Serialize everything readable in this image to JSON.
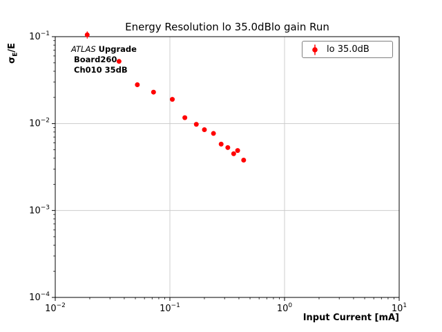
{
  "title": "Energy Resolution lo 35.0dBlo gain Run",
  "axes": {
    "ylabel_sigma": "σ",
    "ylabel_sub": "E",
    "ylabel_rest": "/E",
    "xlabel": "Input Current [mA]"
  },
  "annotation": {
    "line1_italic": "ATLAS",
    "line1_bold": " Upgrade",
    "line2": "Board260",
    "line3": "Ch010 35dB"
  },
  "legend": {
    "label": "lo 35.0dB"
  },
  "colors": {
    "series": "#ff0000",
    "grid": "#cccccc",
    "spine": "#000000"
  },
  "chart_data": {
    "type": "scatter",
    "title": "Energy Resolution lo 35.0dBlo gain Run",
    "xlabel": "Input Current [mA]",
    "ylabel": "σ_E/E",
    "x_scale": "log",
    "y_scale": "log",
    "xlim": [
      0.01,
      10
    ],
    "ylim": [
      0.0001,
      0.1
    ],
    "x_tick_exponents": [
      -2,
      -1,
      0,
      1
    ],
    "y_tick_exponents": [
      -1,
      -2,
      -3,
      -4
    ],
    "grid": true,
    "legend_position": "upper right",
    "annotations": [
      "ATLAS Upgrade",
      "Board260",
      "Ch010 35dB"
    ],
    "series": [
      {
        "name": "lo 35.0dB",
        "color": "#ff0000",
        "marker": "o",
        "x": [
          0.019,
          0.036,
          0.052,
          0.072,
          0.105,
          0.135,
          0.17,
          0.2,
          0.24,
          0.28,
          0.32,
          0.36,
          0.39,
          0.44
        ],
        "y": [
          0.105,
          0.052,
          0.028,
          0.023,
          0.019,
          0.0117,
          0.0098,
          0.0085,
          0.0077,
          0.0058,
          0.0053,
          0.0045,
          0.0049,
          0.0038
        ],
        "yerr": [
          0.01,
          0.003,
          0.0012,
          0.0008,
          0.0006,
          0.0004,
          0.0003,
          0.0003,
          0.0002,
          0.0002,
          0.0002,
          0.0002,
          0.0002,
          0.0002
        ]
      }
    ]
  }
}
